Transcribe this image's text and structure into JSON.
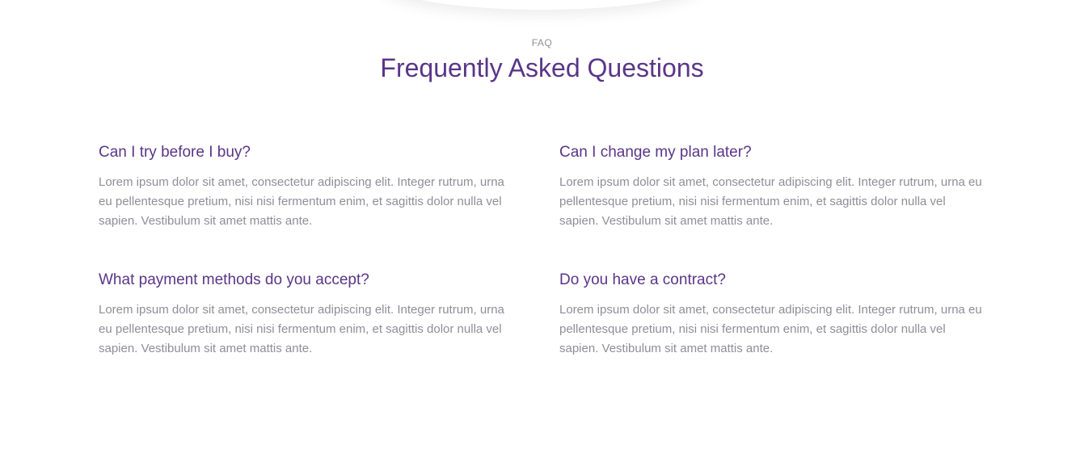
{
  "header": {
    "eyebrow": "FAQ",
    "title": "Frequently Asked Questions"
  },
  "faq": [
    {
      "question": "Can I try before I buy?",
      "answer": "Lorem ipsum dolor sit amet, consectetur adipiscing elit. Integer rutrum, urna eu pellentesque pretium, nisi nisi fermentum enim, et sagittis dolor nulla vel sapien. Vestibulum sit amet mattis ante."
    },
    {
      "question": "Can I change my plan later?",
      "answer": "Lorem ipsum dolor sit amet, consectetur adipiscing elit. Integer rutrum, urna eu pellentesque pretium, nisi nisi fermentum enim, et sagittis dolor nulla vel sapien. Vestibulum sit amet mattis ante."
    },
    {
      "question": "What payment methods do you accept?",
      "answer": "Lorem ipsum dolor sit amet, consectetur adipiscing elit. Integer rutrum, urna eu pellentesque pretium, nisi nisi fermentum enim, et sagittis dolor nulla vel sapien. Vestibulum sit amet mattis ante."
    },
    {
      "question": "Do you have a contract?",
      "answer": "Lorem ipsum dolor sit amet, consectetur adipiscing elit. Integer rutrum, urna eu pellentesque pretium, nisi nisi fermentum enim, et sagittis dolor nulla vel sapien. Vestibulum sit amet mattis ante."
    }
  ],
  "colors": {
    "accent": "#5a3588",
    "muted_text": "#8e8e98",
    "background": "#ffffff"
  }
}
